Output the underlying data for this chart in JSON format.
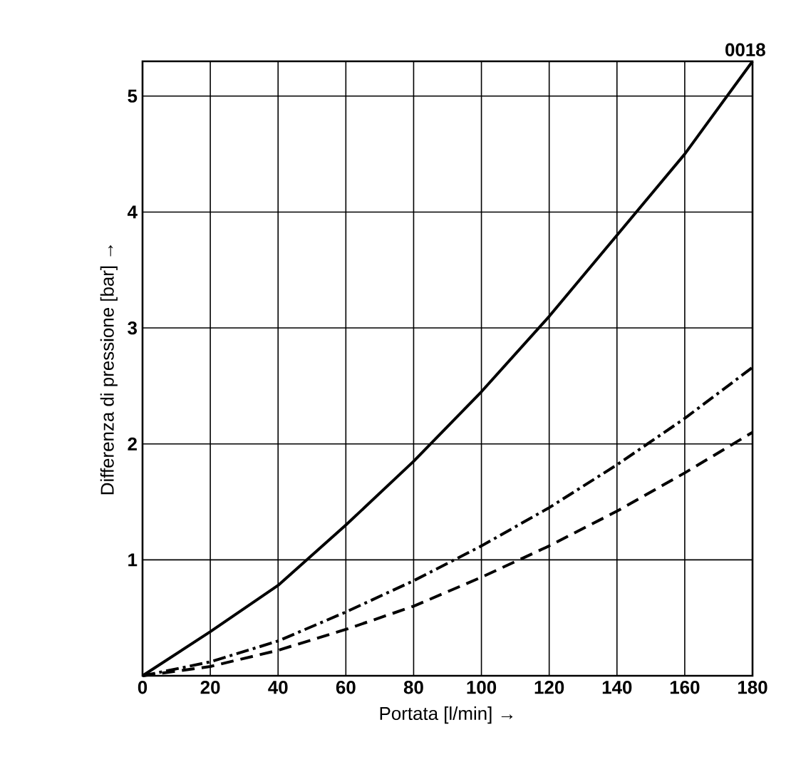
{
  "chart_data": {
    "type": "line",
    "xlabel": "Portata [l/min] →",
    "ylabel": "Differenza di pressione [bar] →",
    "annotations": [
      "0018"
    ],
    "x": [
      0,
      20,
      40,
      60,
      80,
      100,
      120,
      140,
      160,
      180
    ],
    "series": [
      {
        "color": "#000000",
        "line_style": "solid",
        "values": [
          0,
          0.38,
          0.78,
          1.3,
          1.85,
          2.45,
          3.1,
          3.8,
          4.5,
          5.3
        ]
      },
      {
        "color": "#000000",
        "line_style": "dashdot",
        "values": [
          0,
          0.12,
          0.3,
          0.55,
          0.82,
          1.12,
          1.45,
          1.82,
          2.22,
          2.66
        ]
      },
      {
        "color": "#000000",
        "line_style": "dashed",
        "values": [
          0,
          0.08,
          0.22,
          0.4,
          0.6,
          0.85,
          1.12,
          1.42,
          1.75,
          2.1
        ]
      }
    ],
    "xlim": [
      0,
      180
    ],
    "ylim": [
      0,
      5.3
    ],
    "xticks": [
      0,
      20,
      40,
      60,
      80,
      100,
      120,
      140,
      160,
      180
    ],
    "yticks": [
      1,
      2,
      3,
      4,
      5
    ],
    "grid": true,
    "marker": "none"
  }
}
